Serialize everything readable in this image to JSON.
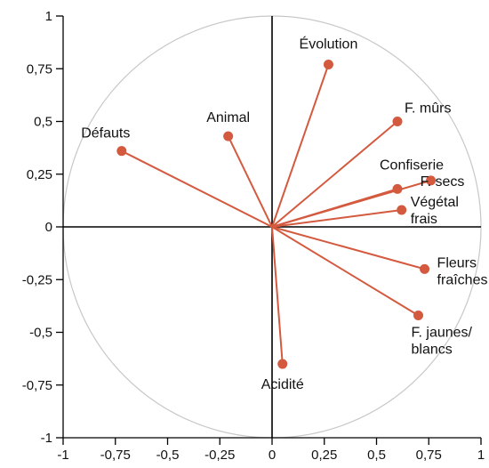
{
  "colors": {
    "vector": "#d45a3f",
    "axis": "#000000",
    "circle": "#c8c8c8",
    "text": "#111111"
  },
  "chart_data": {
    "type": "scatter",
    "title": "",
    "xlabel": "",
    "ylabel": "",
    "xlim": [
      -1,
      1
    ],
    "ylim": [
      -1,
      1
    ],
    "grid": false,
    "unit_circle": true,
    "xticks": [
      "-1",
      "-0,75",
      "-0,5",
      "-0,25",
      "0",
      "0,25",
      "0,5",
      "0,75",
      "1"
    ],
    "yticks": [
      "1",
      "0,75",
      "0,5",
      "0,25",
      "0",
      "-0,25",
      "-0,5",
      "-0,75",
      "-1"
    ],
    "points": [
      {
        "label": [
          "Évolution"
        ],
        "x": 0.27,
        "y": 0.77
      },
      {
        "label": [
          "F. mûrs"
        ],
        "x": 0.6,
        "y": 0.5
      },
      {
        "label": [
          "Défauts"
        ],
        "x": -0.72,
        "y": 0.36
      },
      {
        "label": [
          "Animal"
        ],
        "x": -0.21,
        "y": 0.43
      },
      {
        "label": [
          "Confiserie"
        ],
        "x": 0.6,
        "y": 0.18
      },
      {
        "label": [
          "F. secs"
        ],
        "x": 0.76,
        "y": 0.22
      },
      {
        "label": [
          "Végétal",
          "frais"
        ],
        "x": 0.62,
        "y": 0.08
      },
      {
        "label": [
          "Fleurs",
          "fraîches"
        ],
        "x": 0.73,
        "y": -0.2
      },
      {
        "label": [
          "F. jaunes/",
          "blancs"
        ],
        "x": 0.7,
        "y": -0.42
      },
      {
        "label": [
          "Acidité"
        ],
        "x": 0.05,
        "y": -0.65
      }
    ]
  }
}
